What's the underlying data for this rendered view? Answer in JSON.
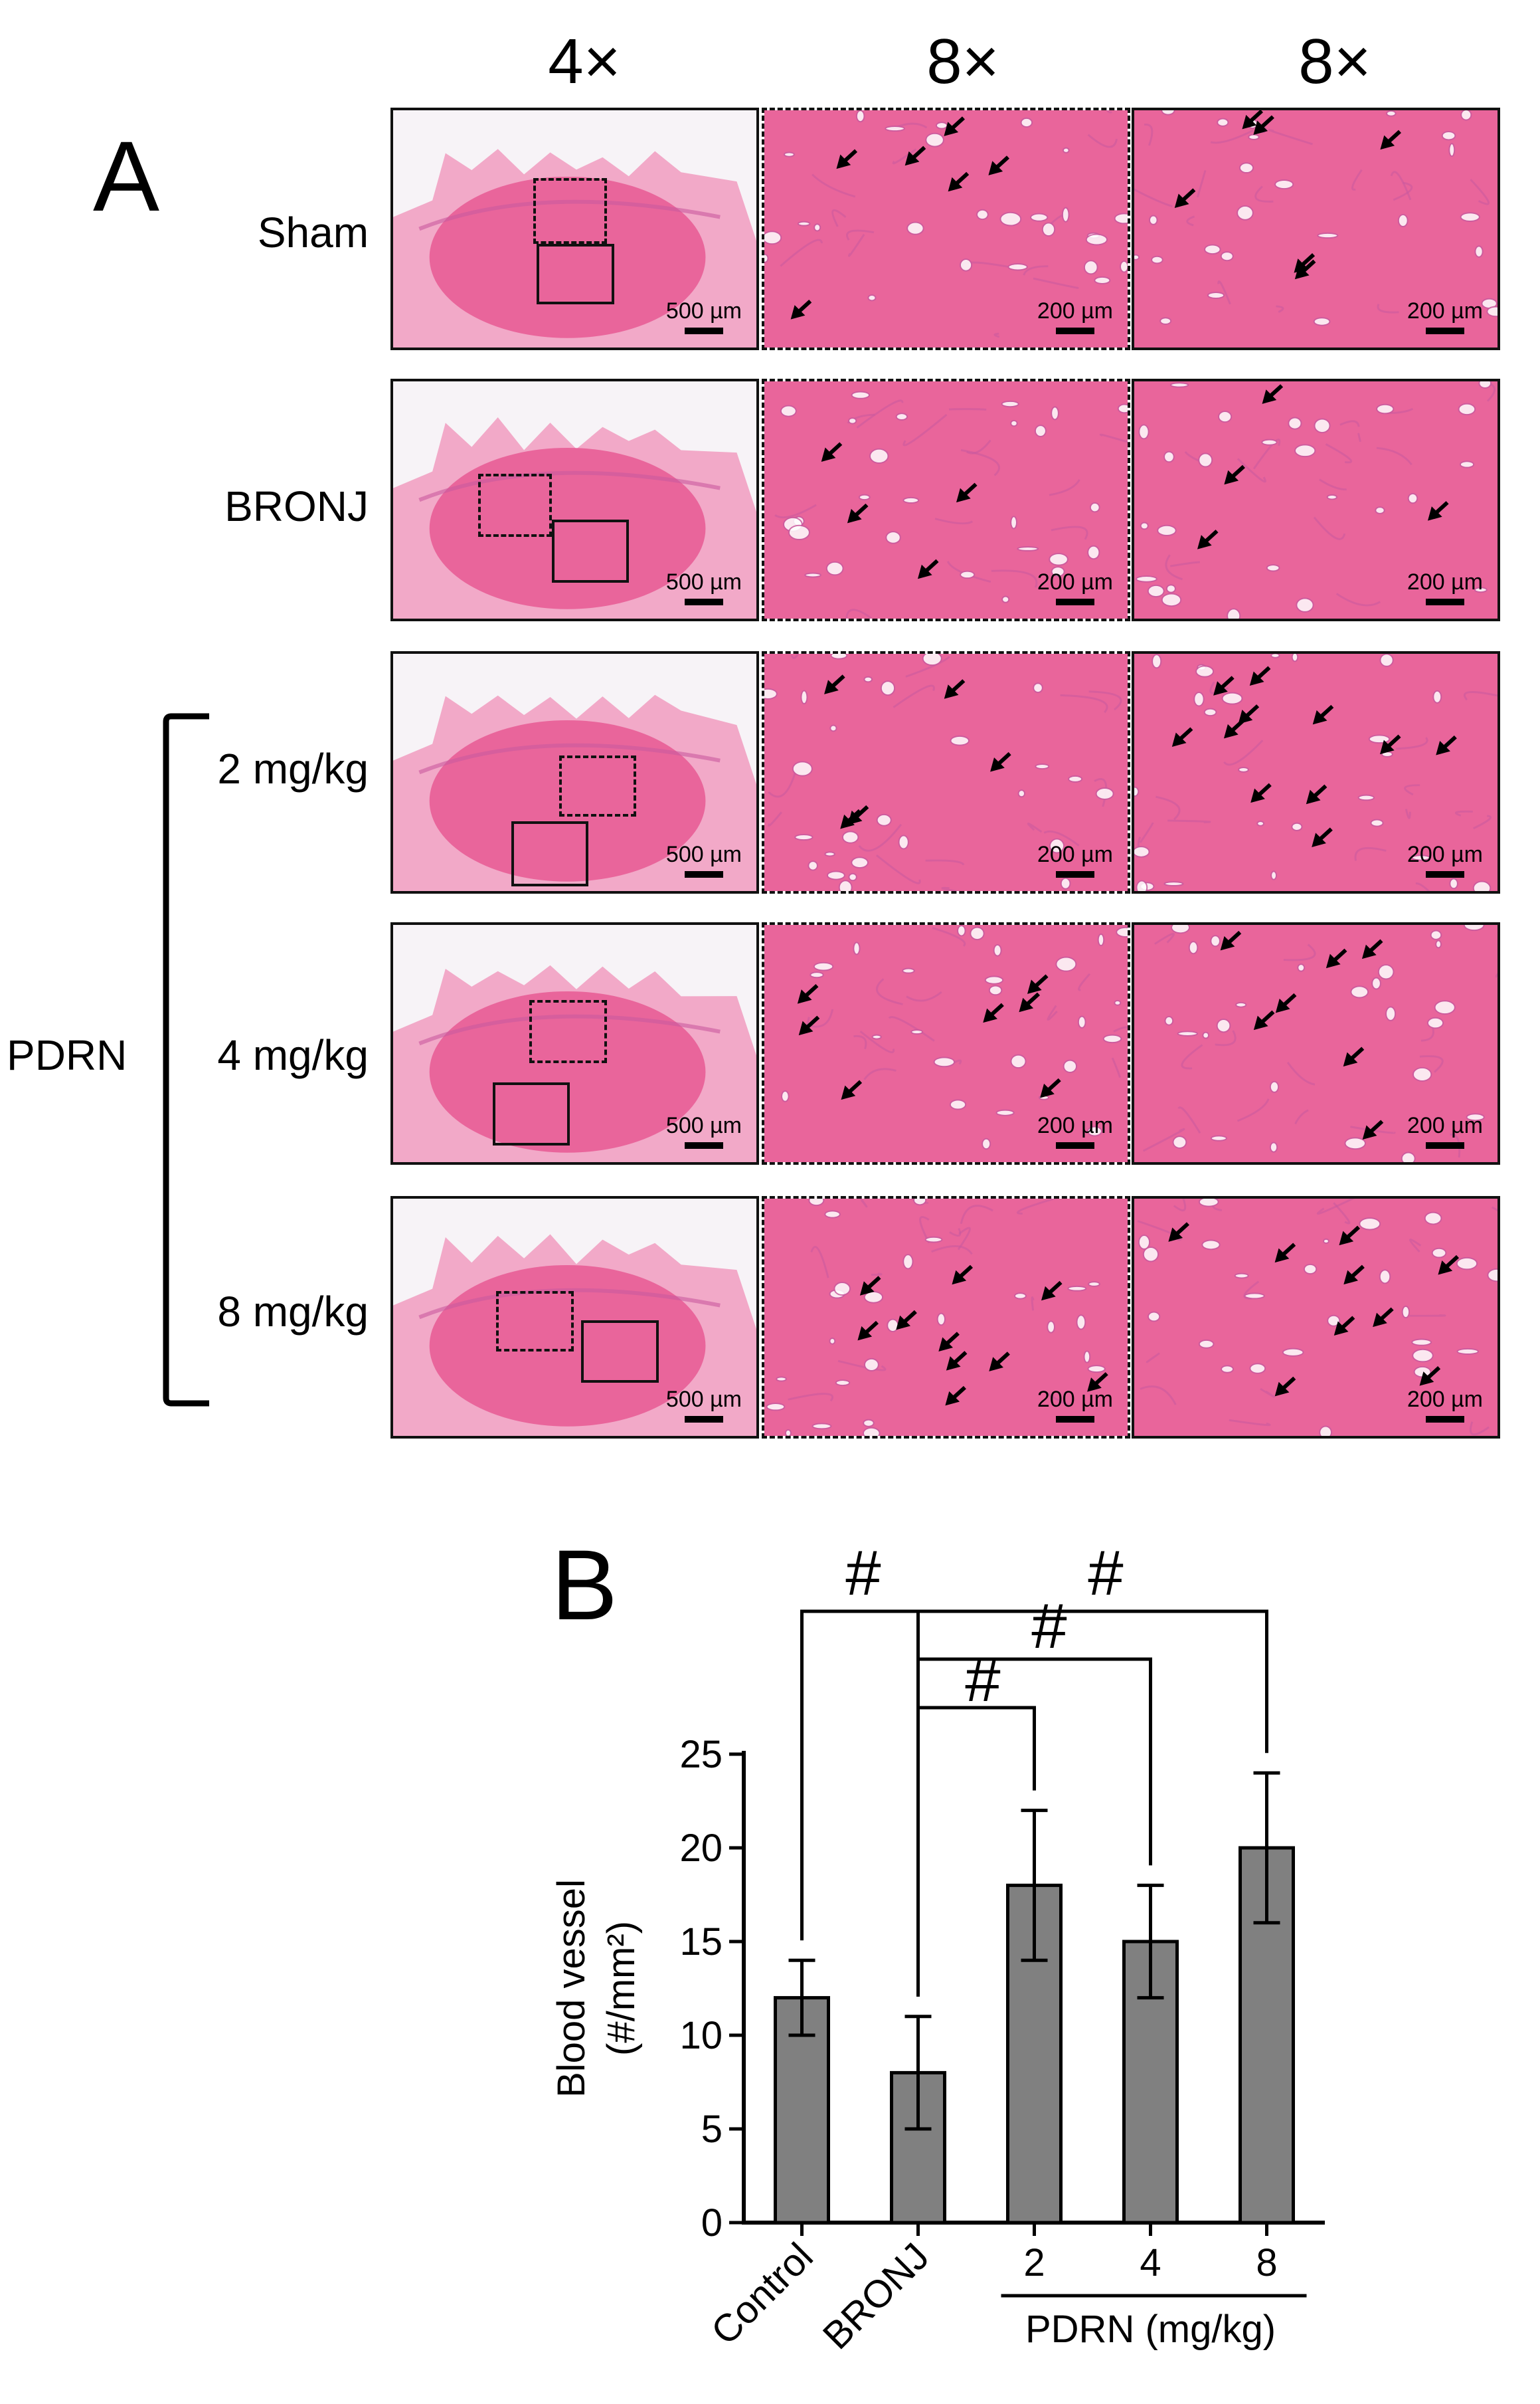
{
  "panel_a": {
    "letter": "A",
    "column_headers": [
      "4×",
      "8×",
      "8×"
    ],
    "rows": [
      {
        "label": "Sham"
      },
      {
        "label": "BRONJ"
      },
      {
        "label": "2 mg/kg"
      },
      {
        "label": "4 mg/kg"
      },
      {
        "label": "8 mg/kg"
      }
    ],
    "group_label": "PDRN",
    "scale_low": "500 µm",
    "scale_high": "200 µm",
    "arrow_counts": [
      [
        6,
        6
      ],
      [
        4,
        4
      ],
      [
        5,
        11
      ],
      [
        7,
        7
      ],
      [
        10,
        9
      ]
    ],
    "colors": {
      "tissue": "#e9659b",
      "tissue_light": "#f2a9c8",
      "tissue_dark": "#c95a9e",
      "background": "#f7f3f7",
      "vessel": "#ffffff",
      "arrow": "#000000"
    }
  },
  "panel_b": {
    "letter": "B",
    "sig_marker": "#",
    "group_label": "PDRN (mg/kg)"
  },
  "chart_data": {
    "type": "bar",
    "categories": [
      "Control",
      "BRONJ",
      "2",
      "4",
      "8"
    ],
    "values": [
      12,
      8,
      18,
      15,
      20
    ],
    "errors": [
      2,
      3,
      4,
      3,
      4
    ],
    "ylabel": "Blood vessel",
    "ylabel_unit": "(#/mm²)",
    "ylim": [
      0,
      25
    ],
    "yticks": [
      0,
      5,
      10,
      15,
      20,
      25
    ],
    "bar_color": "#808080",
    "grid": false
  }
}
